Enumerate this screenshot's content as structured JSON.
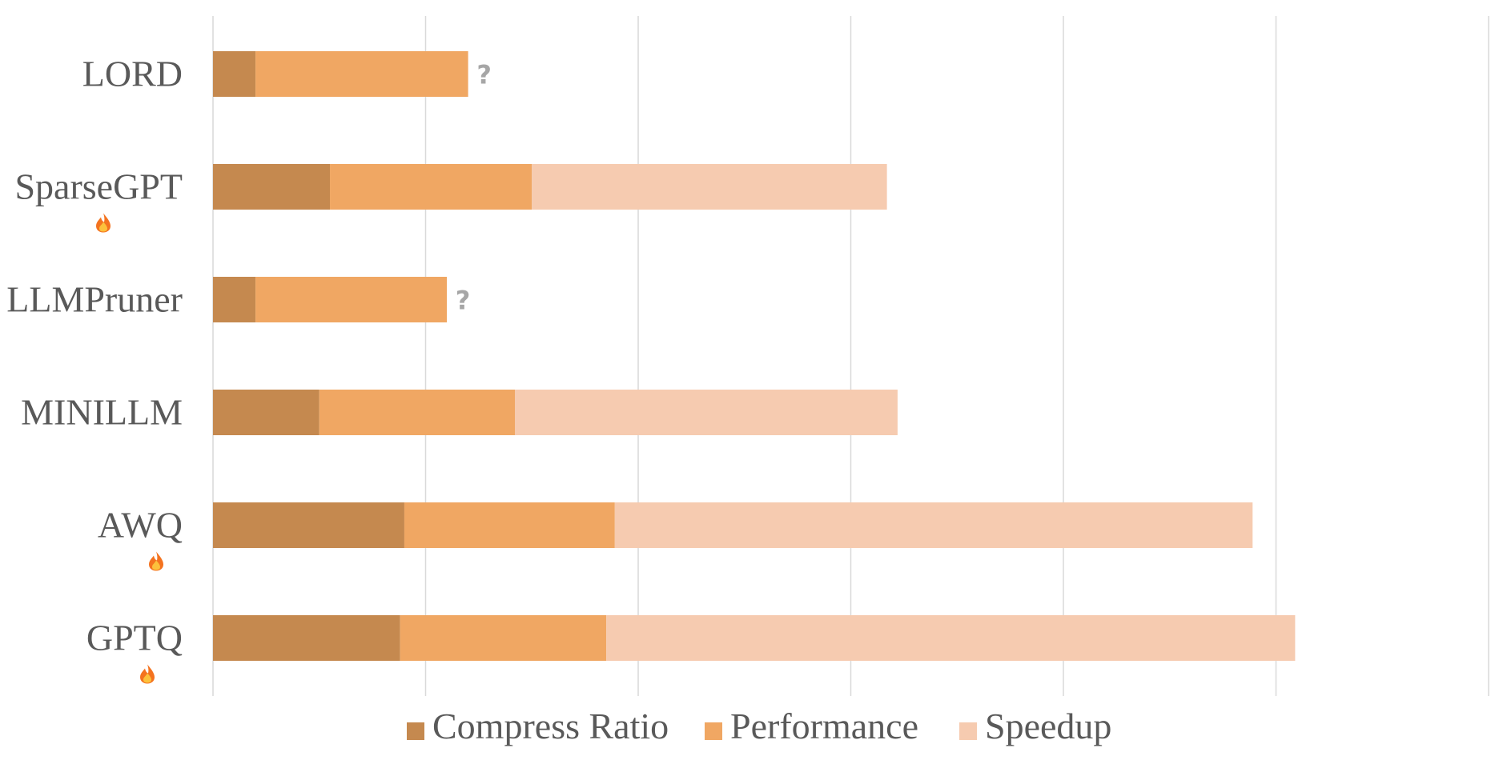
{
  "chart_data": {
    "type": "bar",
    "orientation": "horizontal",
    "stacked": true,
    "title": "",
    "xlabel": "",
    "ylabel": "",
    "xlim": [
      0,
      6
    ],
    "grid": true,
    "legend": "bottom",
    "categories": [
      "LORD",
      "SparseGPT",
      "LLMPruner",
      "MINILLM",
      "AWQ",
      "GPTQ"
    ],
    "series": [
      {
        "name": "Compress Ratio",
        "color": "#c5894f",
        "values": [
          0.2,
          0.55,
          0.2,
          0.5,
          0.9,
          0.88
        ]
      },
      {
        "name": "Performance",
        "color": "#f0a763",
        "values": [
          1.0,
          0.95,
          0.9,
          0.92,
          0.99,
          0.97
        ]
      },
      {
        "name": "Speedup",
        "color": "#f6cbb0",
        "values": [
          null,
          1.67,
          null,
          1.8,
          3.0,
          3.24
        ]
      }
    ],
    "annotations": [
      {
        "category": "LORD",
        "text": "?"
      },
      {
        "category": "LLMPruner",
        "text": "?"
      }
    ],
    "fire_icon_categories": [
      "SparseGPT",
      "AWQ",
      "GPTQ"
    ]
  }
}
